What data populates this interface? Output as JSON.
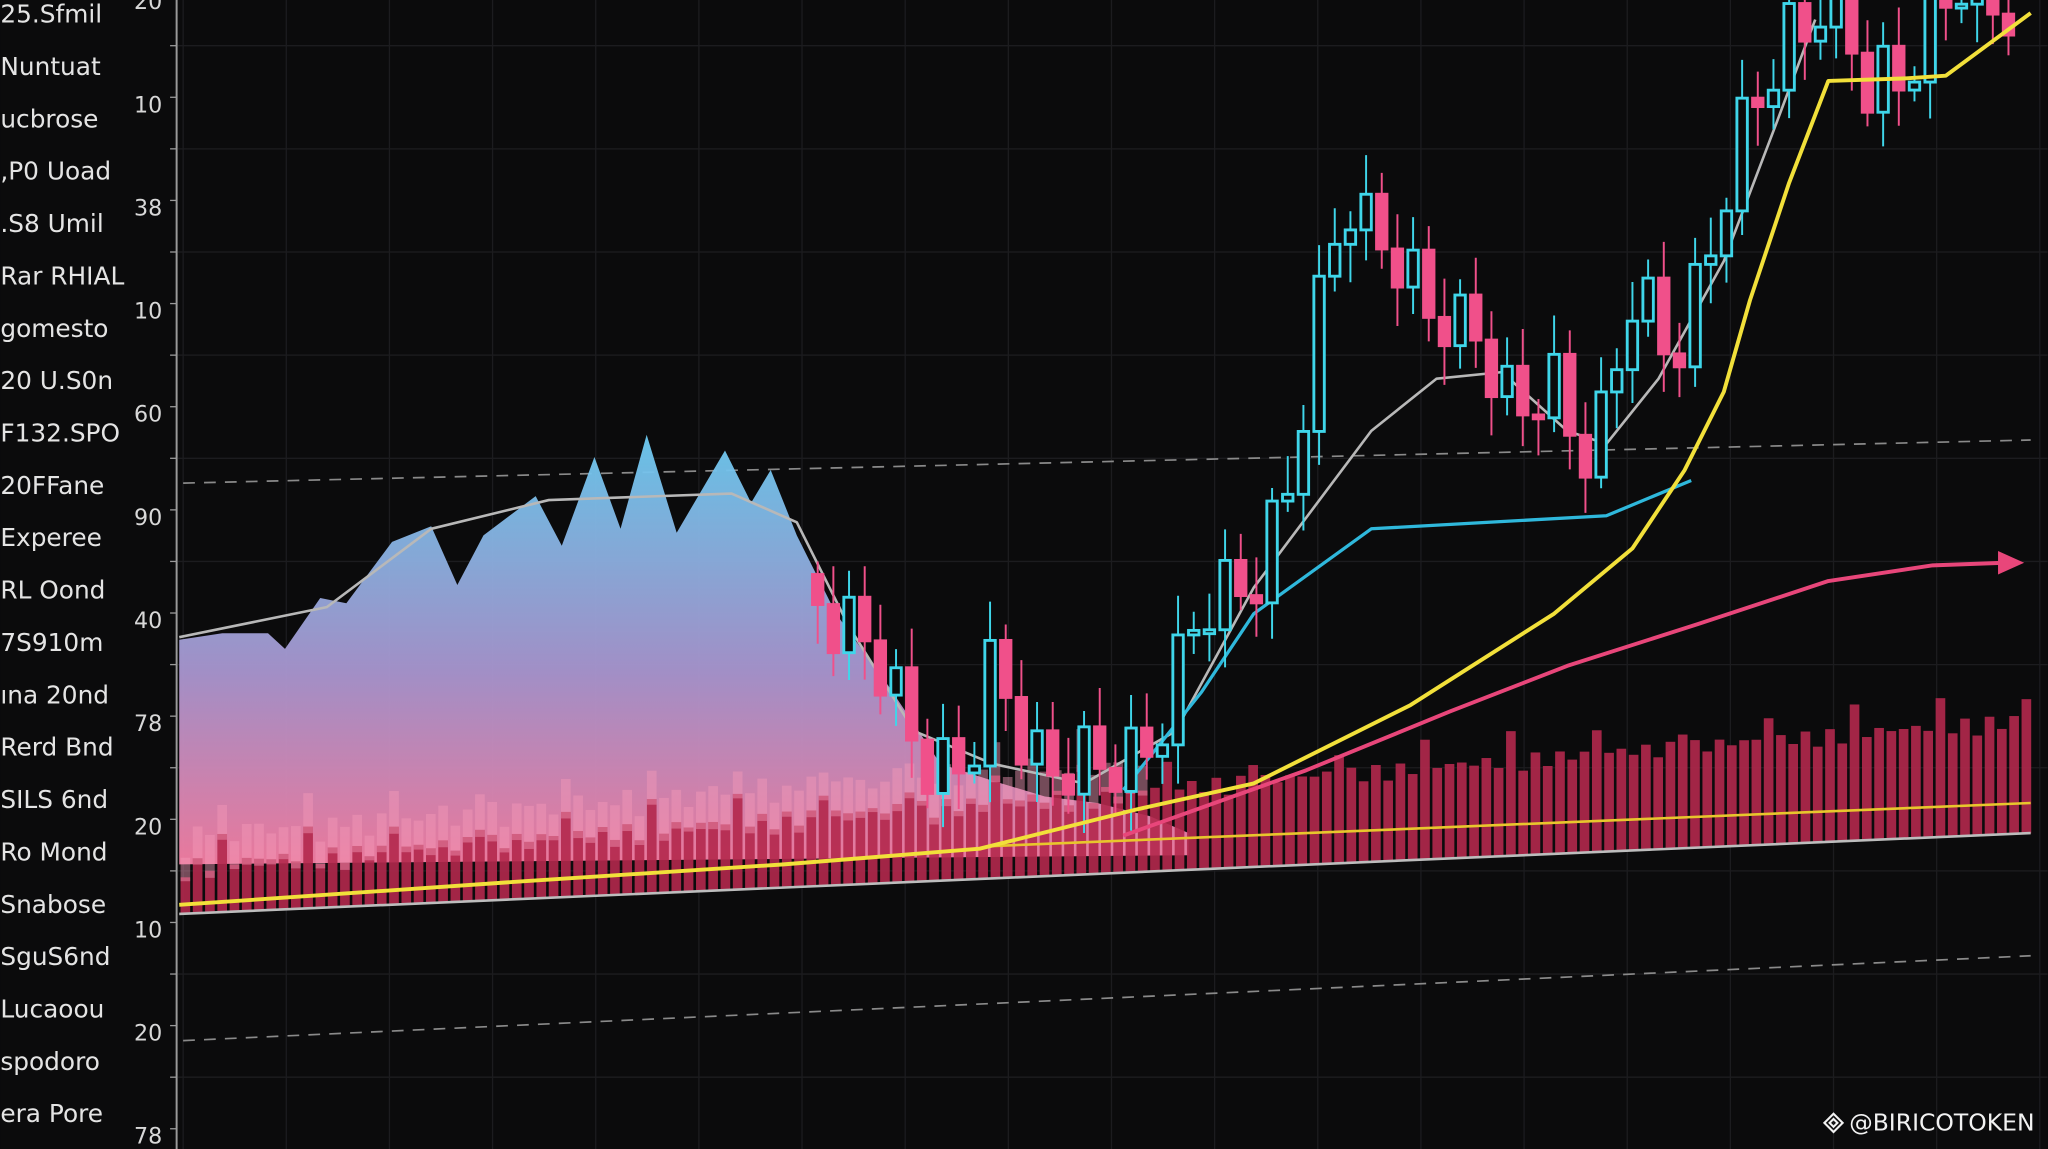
{
  "side_labels": [
    "25.Sfmil",
    "Nuntuat",
    "ucbrose",
    ",P0 Uoad",
    ".S8 Umil",
    "Rar RHIAL",
    "gomesto",
    "20 U.S0n",
    "F132.SPO",
    "20FFane",
    "Experee",
    "RL Oond",
    "7S910m",
    "ına 20nd",
    "Rerd Bnd",
    "SILS 6nd",
    "Ro Mond",
    "Snabose",
    "SguS6nd",
    "Lucaoou",
    "spodoro",
    "era Pore"
  ],
  "axis_labels": [
    "20",
    "10",
    "38",
    "10",
    "60",
    "90",
    "40",
    "78",
    "20",
    "10",
    "20",
    "78"
  ],
  "watermark": "@BIRICOTOKEN"
}
